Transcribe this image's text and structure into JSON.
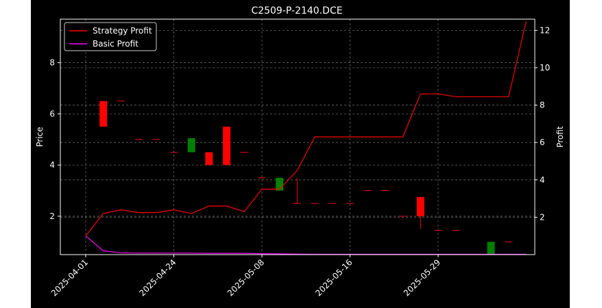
{
  "chart_data": {
    "type": "candlestick+line",
    "title": "C2509-P-2140.DCE",
    "xlabel": "",
    "ylabel_left": "Price",
    "ylabel_right": "Profit",
    "ylim_left": [
      0.5,
      9.7
    ],
    "ylim_right": [
      0.0,
      12.6
    ],
    "yticks_left": [
      2,
      4,
      6,
      8
    ],
    "yticks_right": [
      2,
      4,
      6,
      8,
      10,
      12
    ],
    "grid": true,
    "legend_position": "upper-left",
    "x_tick_labels": [
      {
        "index": 0,
        "label": "2025-04-01"
      },
      {
        "index": 5,
        "label": "2025-04-24"
      },
      {
        "index": 10,
        "label": "2025-05-08"
      },
      {
        "index": 15,
        "label": "2025-05-16"
      },
      {
        "index": 20,
        "label": "2025-05-29"
      }
    ],
    "candles": [
      {
        "i": 1,
        "open": 6.5,
        "close": 5.5,
        "high": 6.5,
        "low": 5.5
      },
      {
        "i": 2,
        "open": 6.5,
        "close": 6.5,
        "high": 6.5,
        "low": 6.5
      },
      {
        "i": 3,
        "open": 5.0,
        "close": 5.0,
        "high": 5.0,
        "low": 5.0
      },
      {
        "i": 4,
        "open": 5.0,
        "close": 5.0,
        "high": 5.0,
        "low": 5.0
      },
      {
        "i": 5,
        "open": 4.5,
        "close": 4.5,
        "high": 4.5,
        "low": 4.5
      },
      {
        "i": 6,
        "open": 4.5,
        "close": 5.05,
        "high": 5.05,
        "low": 4.5
      },
      {
        "i": 7,
        "open": 4.5,
        "close": 4.0,
        "high": 4.5,
        "low": 4.0
      },
      {
        "i": 8,
        "open": 5.5,
        "close": 4.0,
        "high": 5.5,
        "low": 4.0
      },
      {
        "i": 9,
        "open": 4.5,
        "close": 4.5,
        "high": 4.5,
        "low": 4.5
      },
      {
        "i": 10,
        "open": 3.5,
        "close": 3.5,
        "high": 3.5,
        "low": 3.5
      },
      {
        "i": 11,
        "open": 3.0,
        "close": 3.5,
        "high": 3.5,
        "low": 3.0
      },
      {
        "i": 12,
        "open": 2.5,
        "close": 2.5,
        "high": 3.5,
        "low": 2.5
      },
      {
        "i": 13,
        "open": 2.5,
        "close": 2.5,
        "high": 2.5,
        "low": 2.5
      },
      {
        "i": 14,
        "open": 2.5,
        "close": 2.5,
        "high": 2.5,
        "low": 2.5
      },
      {
        "i": 15,
        "open": 2.5,
        "close": 2.5,
        "high": 2.5,
        "low": 2.5
      },
      {
        "i": 16,
        "open": 3.0,
        "close": 3.0,
        "high": 3.0,
        "low": 3.0
      },
      {
        "i": 17,
        "open": 3.0,
        "close": 3.0,
        "high": 3.0,
        "low": 3.0
      },
      {
        "i": 18,
        "open": 2.0,
        "close": 2.0,
        "high": 2.0,
        "low": 2.0
      },
      {
        "i": 19,
        "open": 2.75,
        "close": 2.0,
        "high": 2.75,
        "low": 1.5
      },
      {
        "i": 20,
        "open": 1.45,
        "close": 1.45,
        "high": 1.45,
        "low": 1.45
      },
      {
        "i": 21,
        "open": 1.45,
        "close": 1.45,
        "high": 1.45,
        "low": 1.45
      },
      {
        "i": 23,
        "open": 0.5,
        "close": 1.0,
        "high": 1.0,
        "low": 0.5
      },
      {
        "i": 24,
        "open": 1.0,
        "close": 1.0,
        "high": 1.0,
        "low": 1.0
      }
    ],
    "series": [
      {
        "name": "Strategy Profit",
        "color": "#ff0000",
        "x": [
          0,
          1,
          2,
          3,
          4,
          5,
          6,
          7,
          8,
          9,
          10,
          11,
          12,
          13,
          14,
          15,
          16,
          17,
          18,
          19,
          20,
          21,
          22,
          23,
          24,
          25
        ],
        "values": [
          1.0,
          2.2,
          2.4,
          2.25,
          2.25,
          2.4,
          2.2,
          2.6,
          2.6,
          2.3,
          3.5,
          3.5,
          4.5,
          6.3,
          6.3,
          6.3,
          6.3,
          6.3,
          6.3,
          8.6,
          8.6,
          8.45,
          8.45,
          8.45,
          8.45,
          12.5
        ]
      },
      {
        "name": "Basic Profit",
        "color": "#ff00ff",
        "x": [
          0,
          1,
          2,
          3,
          4,
          5,
          6,
          7,
          8,
          9,
          10,
          11,
          12,
          13,
          14,
          15,
          16,
          17,
          18,
          19,
          20,
          21,
          22,
          23,
          24,
          25
        ],
        "values": [
          1.0,
          0.2,
          0.1,
          0.08,
          0.08,
          0.08,
          0.08,
          0.07,
          0.07,
          0.07,
          0.05,
          0.04,
          0.03,
          0.02,
          0.02,
          0.02,
          0.02,
          0.02,
          0.02,
          0.02,
          0.02,
          0.02,
          0.02,
          0.02,
          0.02,
          0.02
        ]
      }
    ],
    "up_color": "#008000",
    "down_color": "#ff0000"
  }
}
